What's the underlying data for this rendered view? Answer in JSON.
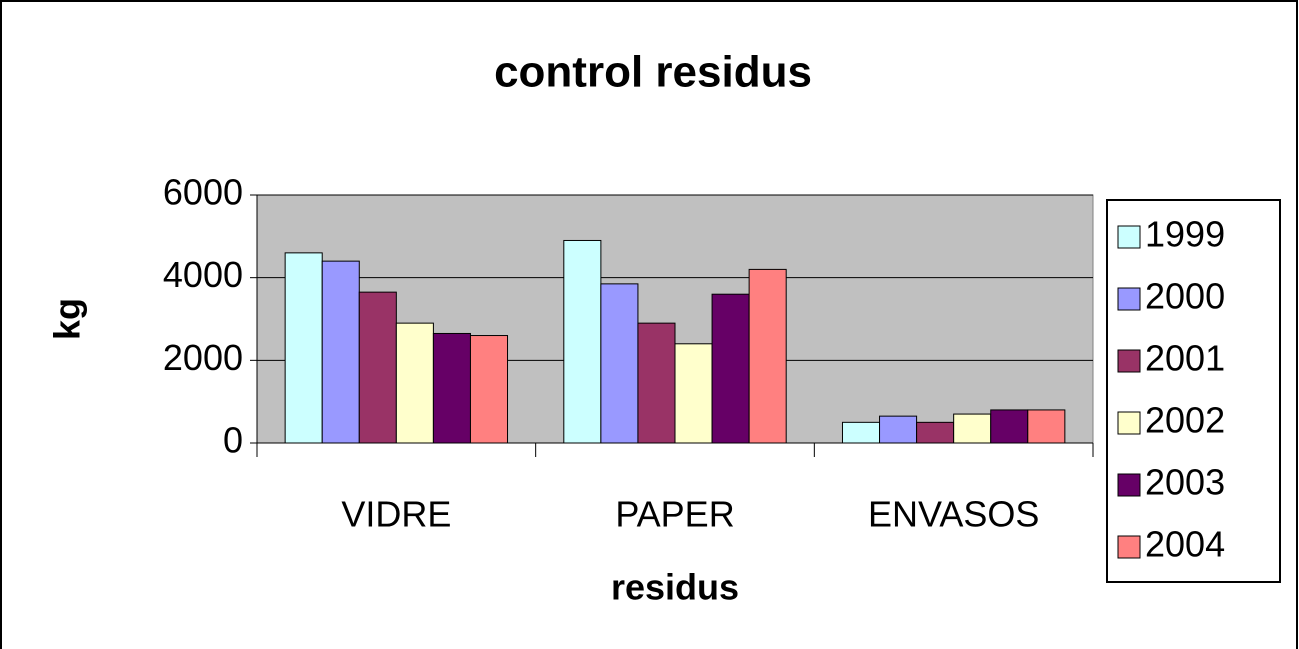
{
  "chart_data": {
    "type": "bar",
    "title": "control residus",
    "x_label": "residus",
    "y_label": "kg",
    "categories": [
      "VIDRE",
      "PAPER",
      "ENVASOS"
    ],
    "series": [
      {
        "name": "1999",
        "color": "#ccffff",
        "values": [
          4600,
          4900,
          500
        ]
      },
      {
        "name": "2000",
        "color": "#9999ff",
        "values": [
          4400,
          3850,
          650
        ]
      },
      {
        "name": "2001",
        "color": "#993366",
        "values": [
          3650,
          2900,
          500
        ]
      },
      {
        "name": "2002",
        "color": "#ffffcc",
        "values": [
          2900,
          2400,
          700
        ]
      },
      {
        "name": "2003",
        "color": "#660066",
        "values": [
          2650,
          3600,
          800
        ]
      },
      {
        "name": "2004",
        "color": "#ff8080",
        "values": [
          2600,
          4200,
          800
        ]
      }
    ],
    "ylim": [
      0,
      6000
    ],
    "yticks": [
      0,
      2000,
      4000,
      6000
    ],
    "grid": true,
    "legend": "right"
  }
}
